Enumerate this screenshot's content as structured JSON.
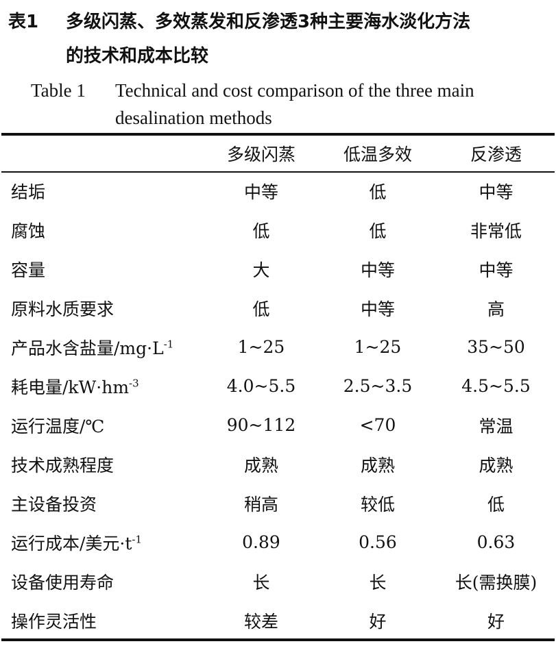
{
  "caption": {
    "cn_label": "表1",
    "cn_title_line1": "多级闪蒸、多效蒸发和反渗透3种主要海水淡化方法",
    "cn_title_line2": "的技术和成本比较",
    "en_label": "Table 1",
    "en_title_line1": "Technical and cost comparison of the three main",
    "en_title_line2": "desalination methods"
  },
  "table": {
    "headers": [
      "",
      "多级闪蒸",
      "低温多效",
      "反渗透"
    ],
    "rows": [
      {
        "label": "结垢",
        "sup": "",
        "values": [
          "中等",
          "低",
          "中等"
        ]
      },
      {
        "label": "腐蚀",
        "sup": "",
        "values": [
          "低",
          "低",
          "非常低"
        ]
      },
      {
        "label": "容量",
        "sup": "",
        "values": [
          "大",
          "中等",
          "中等"
        ]
      },
      {
        "label": "原料水质要求",
        "sup": "",
        "values": [
          "低",
          "中等",
          "高"
        ]
      },
      {
        "label": "产品水含盐量/mg·L",
        "sup": "-1",
        "values": [
          "1~25",
          "1~25",
          "35~50"
        ]
      },
      {
        "label": "耗电量/kW·hm",
        "sup": "-3",
        "values": [
          "4.0~5.5",
          "2.5~3.5",
          "4.5~5.5"
        ]
      },
      {
        "label": "运行温度/℃",
        "sup": "",
        "values": [
          "90~112",
          "<70",
          "常温"
        ]
      },
      {
        "label": "技术成熟程度",
        "sup": "",
        "values": [
          "成熟",
          "成熟",
          "成熟"
        ]
      },
      {
        "label": "主设备投资",
        "sup": "",
        "values": [
          "稍高",
          "较低",
          "低"
        ]
      },
      {
        "label": "运行成本/美元·t",
        "sup": "-1",
        "values": [
          "0.89",
          "0.56",
          "0.63"
        ]
      },
      {
        "label": "设备使用寿命",
        "sup": "",
        "values": [
          "长",
          "长",
          "长(需换膜)"
        ]
      },
      {
        "label": "操作灵活性",
        "sup": "",
        "values": [
          "较差",
          "好",
          "好"
        ]
      }
    ]
  }
}
